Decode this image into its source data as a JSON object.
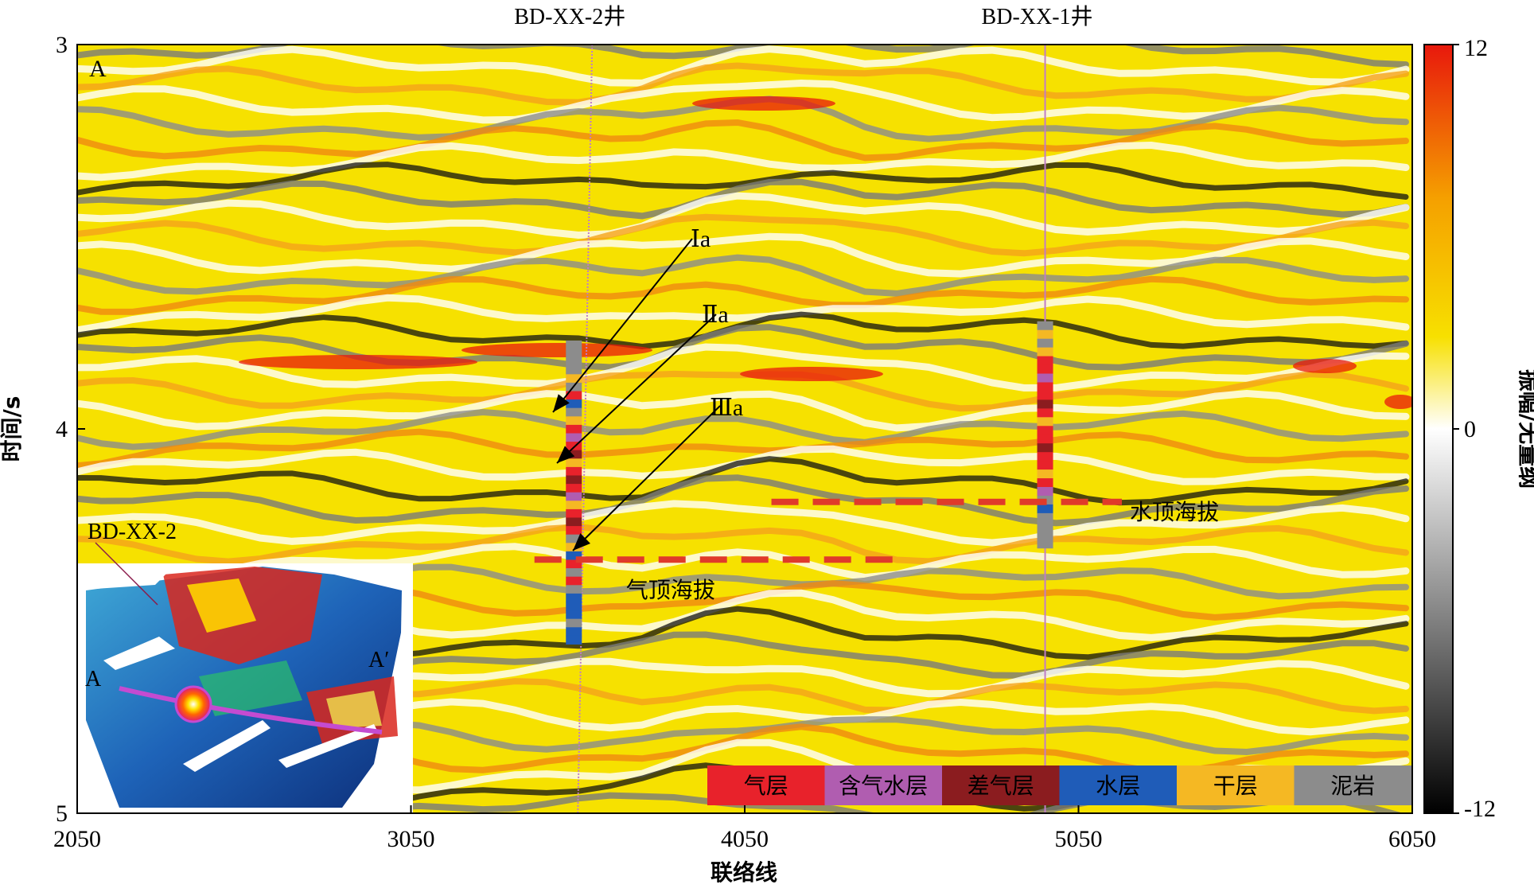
{
  "chart_data": {
    "type": "heatmap",
    "panel_label": "A",
    "xlabel": "联络线",
    "ylabel": "时间/s",
    "xlim": [
      2050,
      6050
    ],
    "ylim": [
      3,
      5
    ],
    "x_ticks": [
      "2050",
      "3050",
      "4050",
      "5050",
      "6050"
    ],
    "y_ticks": [
      "3",
      "4",
      "5"
    ],
    "wells": [
      {
        "name": "BD-XX-2井",
        "x": 3550
      },
      {
        "name": "BD-XX-1井",
        "x": 4950
      }
    ],
    "horizons": [
      "Ⅰa",
      "Ⅱa",
      "Ⅲa"
    ],
    "contacts": [
      {
        "label": "气顶海拔",
        "time": 4.34,
        "x_range": [
          3420,
          4500
        ]
      },
      {
        "label": "水顶海拔",
        "time": 4.19,
        "x_range": [
          4130,
          5180
        ]
      }
    ],
    "colorbar": {
      "label": "振幅/无量纲",
      "min": -12,
      "max": 12,
      "tick_labels": [
        "12",
        "0",
        "-12"
      ],
      "colors": [
        "#000000",
        "#808080",
        "#ffffff",
        "#f7e000",
        "#f5a000",
        "#e8180c"
      ]
    },
    "lithology_legend": [
      {
        "label": "气层",
        "color": "#e8222b"
      },
      {
        "label": "含气水层",
        "color": "#b05db0"
      },
      {
        "label": "差气层",
        "color": "#8b1c1f"
      },
      {
        "label": "水层",
        "color": "#1f5cb8"
      },
      {
        "label": "干层",
        "color": "#f5b823"
      },
      {
        "label": "泥岩",
        "color": "#8c8c8c"
      }
    ],
    "inset_map": {
      "well_label": "BD-XX-2",
      "section_labels": [
        "A",
        "A′"
      ]
    }
  }
}
